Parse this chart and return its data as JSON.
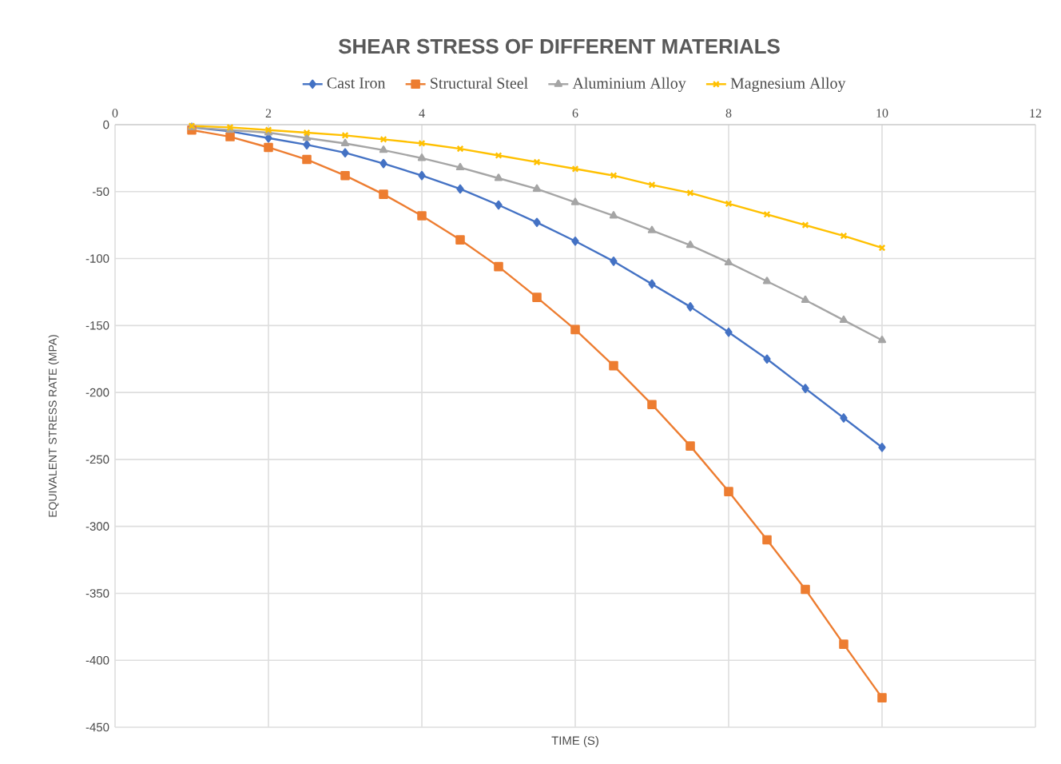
{
  "chart_data": {
    "type": "line",
    "title": "SHEAR STRESS OF DIFFERENT MATERIALS",
    "xlabel": "TIME (S)",
    "ylabel": "EQUIVALENT STRESS RATE (MPA)",
    "x": [
      1,
      1.5,
      2,
      2.5,
      3,
      3.5,
      4,
      4.5,
      5,
      5.5,
      6,
      6.5,
      7,
      7.5,
      8,
      8.5,
      9,
      9.5,
      10
    ],
    "series": [
      {
        "name": "Cast Iron",
        "color": "#4472c4",
        "marker": "diamond",
        "values": [
          -2,
          -5,
          -10,
          -15,
          -21,
          -29,
          -38,
          -48,
          -60,
          -73,
          -87,
          -102,
          -119,
          -136,
          -155,
          -175,
          -197,
          -219,
          -241
        ]
      },
      {
        "name": "Structural Steel",
        "color": "#ed7d31",
        "marker": "square",
        "values": [
          -4,
          -9,
          -17,
          -26,
          -38,
          -52,
          -68,
          -86,
          -106,
          -129,
          -153,
          -180,
          -209,
          -240,
          -274,
          -310,
          -347,
          -388,
          -428
        ]
      },
      {
        "name": "Aluminium Alloy",
        "color": "#a5a5a5",
        "marker": "triangle",
        "values": [
          -2,
          -4,
          -6,
          -10,
          -14,
          -19,
          -25,
          -32,
          -40,
          -48,
          -58,
          -68,
          -79,
          -90,
          -103,
          -117,
          -131,
          -146,
          -161
        ]
      },
      {
        "name": "Magnesium Alloy",
        "color": "#ffc000",
        "marker": "cross",
        "values": [
          -1,
          -2,
          -4,
          -6,
          -8,
          -11,
          -14,
          -18,
          -23,
          -28,
          -33,
          -38,
          -45,
          -51,
          -59,
          -67,
          -75,
          -83,
          -92
        ]
      }
    ],
    "xlim": [
      0,
      12
    ],
    "xticks": [
      0,
      2,
      4,
      6,
      8,
      10,
      12
    ],
    "ylim": [
      -450,
      0
    ],
    "yticks": [
      -450,
      -400,
      -350,
      -300,
      -250,
      -200,
      -150,
      -100,
      -50,
      0
    ],
    "grid": true,
    "legend": "top",
    "line_style": "solid"
  }
}
